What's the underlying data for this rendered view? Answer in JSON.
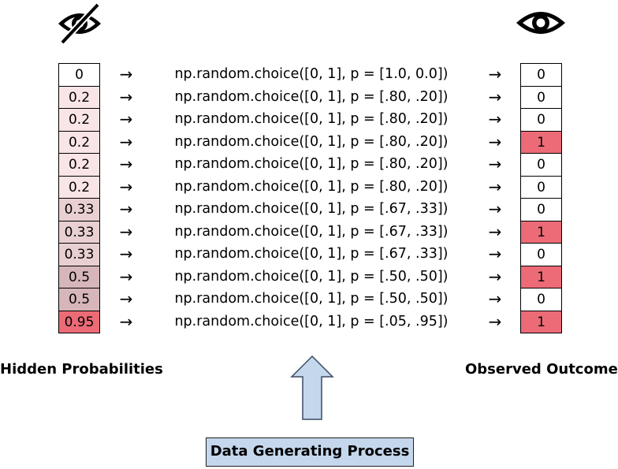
{
  "icons": {
    "hidden": "eye-slash-icon",
    "observed": "eye-icon"
  },
  "colors": {
    "prob_0": "#ffffff",
    "prob_0_2": "#f9e4e6",
    "prob_0_33": "#e8cfd0",
    "prob_0_5": "#d6b6b9",
    "prob_0_95": "#ec6b77",
    "outcome_1": "#ec6b77",
    "outcome_0": "#ffffff",
    "process_box": "#c5d7ec",
    "up_arrow": "#c5d7ec"
  },
  "rows": [
    {
      "prob": "0",
      "expr": "np.random.choice([0, 1], p = [1.0, 0.0])",
      "outcome": "0"
    },
    {
      "prob": "0.2",
      "expr": "np.random.choice([0, 1], p = [.80, .20])",
      "outcome": "0"
    },
    {
      "prob": "0.2",
      "expr": "np.random.choice([0, 1], p = [.80, .20])",
      "outcome": "0"
    },
    {
      "prob": "0.2",
      "expr": "np.random.choice([0, 1], p = [.80, .20])",
      "outcome": "1"
    },
    {
      "prob": "0.2",
      "expr": "np.random.choice([0, 1], p = [.80, .20])",
      "outcome": "0"
    },
    {
      "prob": "0.2",
      "expr": "np.random.choice([0, 1], p = [.80, .20])",
      "outcome": "0"
    },
    {
      "prob": "0.33",
      "expr": "np.random.choice([0, 1], p = [.67, .33])",
      "outcome": "0"
    },
    {
      "prob": "0.33",
      "expr": "np.random.choice([0, 1], p = [.67, .33])",
      "outcome": "1"
    },
    {
      "prob": "0.33",
      "expr": "np.random.choice([0, 1], p = [.67, .33])",
      "outcome": "0"
    },
    {
      "prob": "0.5",
      "expr": "np.random.choice([0, 1], p = [.50, .50])",
      "outcome": "1"
    },
    {
      "prob": "0.5",
      "expr": "np.random.choice([0, 1], p = [.50, .50])",
      "outcome": "0"
    },
    {
      "prob": "0.95",
      "expr": "np.random.choice([0, 1], p = [.05, .95])",
      "outcome": "1"
    }
  ],
  "arrow_glyph": "→",
  "hidden_label": "Hidden Probabilities",
  "observed_label": "Observed Outcome",
  "process_label": "Data Generating Process"
}
